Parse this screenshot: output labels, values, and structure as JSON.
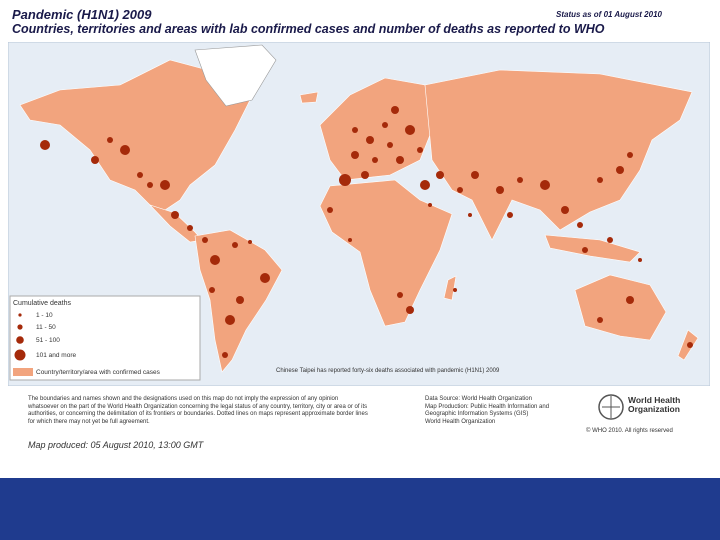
{
  "header": {
    "title": "Pandemic (H1N1) 2009",
    "status": "Status as of 01 August 2010",
    "subtitle": "Countries, territories and areas with lab confirmed cases and number of deaths as reported to WHO"
  },
  "legend": {
    "title": "Cumulative deaths",
    "items": [
      "1 - 10",
      "11 - 50",
      "51 - 100",
      "101 and more",
      "Country/territory/area with confirmed cases"
    ]
  },
  "map_note": "Chinese Taipei has reported forty-six deaths associated with pandemic (H1N1) 2009",
  "footer": {
    "disclaimer": "The boundaries and names shown and the designations used on this map do not imply the expression of any opinion whatsoever on the part of the World Health Organization concerning the legal status of any country, territory, city or area or of its authorities, or concerning the delimitation of its frontiers or boundaries. Dotted lines on maps represent approximate border lines for which there may not yet be full agreement.",
    "produced": "Map produced: 05 August 2010, 13:00 GMT",
    "source": [
      "Data Source: World Health Organization",
      "Map Production: Public Health Information and Geographic Information Systems (GIS)",
      "World Health Organization"
    ],
    "logo": "World Health Organization",
    "copyright": "© WHO 2010. All rights reserved"
  }
}
